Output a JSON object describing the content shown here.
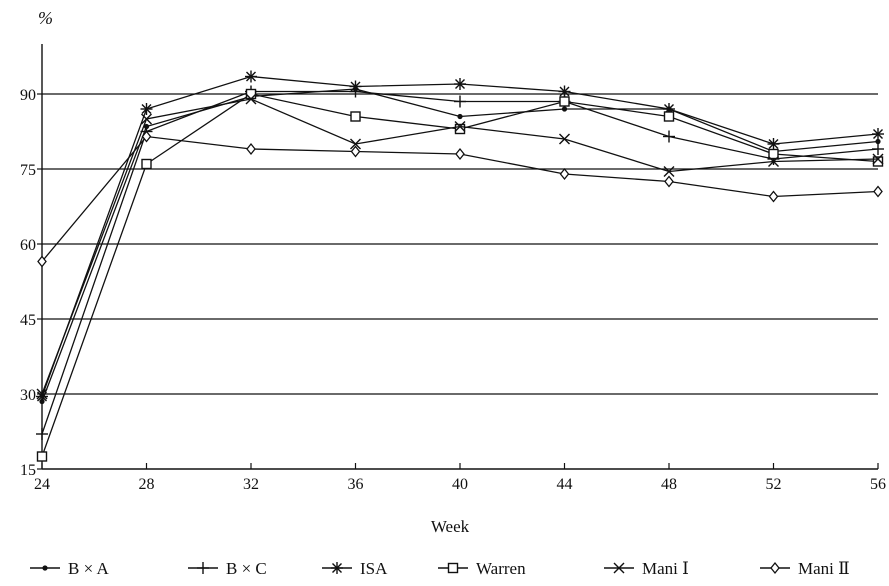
{
  "chart_data": {
    "type": "line",
    "title": "",
    "y_unit_label": "%",
    "xlabel": "Week",
    "ylabel": "",
    "x": [
      24,
      28,
      32,
      36,
      40,
      44,
      48,
      52,
      56
    ],
    "x_tick_labels": [
      "24",
      "28",
      "32",
      "36",
      "40",
      "44",
      "48",
      "52",
      "56"
    ],
    "ylim": [
      15,
      100
    ],
    "y_ticks": [
      15,
      30,
      45,
      60,
      75,
      90
    ],
    "y_tick_labels": [
      "15",
      "30",
      "45",
      "60",
      "75",
      "90"
    ],
    "horizontal_grid": true,
    "legend_position": "bottom",
    "series": [
      {
        "name": "B × A",
        "marker": "dot",
        "values": [
          28.5,
          83.5,
          89.5,
          91.0,
          85.5,
          87.0,
          87.0,
          78.5,
          80.5
        ]
      },
      {
        "name": "B × C",
        "marker": "plus",
        "values": [
          22.0,
          82.5,
          90.5,
          90.5,
          88.5,
          88.5,
          81.5,
          77.0,
          79.0
        ]
      },
      {
        "name": "ISA",
        "marker": "asterisk",
        "values": [
          29.5,
          87.0,
          93.5,
          91.5,
          92.0,
          90.5,
          87.0,
          80.0,
          82.0
        ]
      },
      {
        "name": "Warren",
        "marker": "square",
        "values": [
          17.5,
          76.0,
          90.0,
          85.5,
          83.0,
          88.5,
          85.5,
          78.0,
          76.5
        ]
      },
      {
        "name": "Mani Ⅰ",
        "marker": "x",
        "values": [
          30.0,
          85.0,
          89.0,
          80.0,
          83.5,
          81.0,
          74.5,
          76.5,
          77.0
        ]
      },
      {
        "name": "Mani Ⅱ",
        "marker": "diamond",
        "values": [
          56.5,
          81.5,
          79.0,
          78.5,
          78.0,
          74.0,
          72.5,
          69.5,
          70.5
        ]
      }
    ]
  }
}
